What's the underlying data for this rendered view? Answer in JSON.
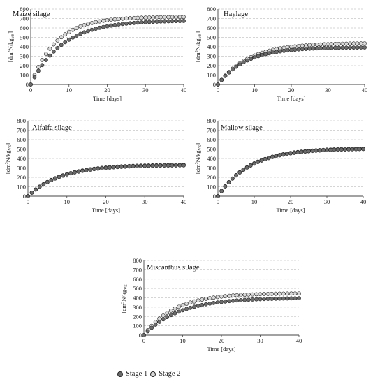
{
  "chart_data": [
    {
      "type": "scatter",
      "title": "Maize silage",
      "xlabel": "Time [days]",
      "ylabel_main": "[dm",
      "ylabel_sup": "3",
      "ylabel_mid": "N/kg",
      "ylabel_sub": "VS",
      "ylabel_end": "]",
      "xlim": [
        0,
        40
      ],
      "ylim": [
        0,
        800
      ],
      "xticks": [
        0,
        10,
        20,
        30,
        40
      ],
      "yticks": [
        0,
        100,
        200,
        300,
        400,
        500,
        600,
        700,
        800
      ],
      "series": [
        {
          "name": "Stage 1",
          "asymptote": 680,
          "k": 0.12
        },
        {
          "name": "Stage 2",
          "asymptote": 718,
          "k": 0.15
        }
      ]
    },
    {
      "type": "scatter",
      "title": "Haylage",
      "xlabel": "Time [days]",
      "ylabel_main": "[dm",
      "ylabel_sup": "3",
      "ylabel_mid": "N/kg",
      "ylabel_sub": "VS",
      "ylabel_end": "]",
      "xlim": [
        0,
        40
      ],
      "ylim": [
        0,
        800
      ],
      "xticks": [
        0,
        10,
        20,
        30,
        40
      ],
      "yticks": [
        0,
        100,
        200,
        300,
        400,
        500,
        600,
        700,
        800
      ],
      "series": [
        {
          "name": "Stage 1",
          "asymptote": 395,
          "k": 0.13
        },
        {
          "name": "Stage 2",
          "asymptote": 440,
          "k": 0.12
        }
      ]
    },
    {
      "type": "scatter",
      "title": "Alfalfa silage",
      "xlabel": "Time [days]",
      "ylabel_main": "[dm",
      "ylabel_sup": "3",
      "ylabel_mid": "N/kg",
      "ylabel_sub": "VS",
      "ylabel_end": "]",
      "xlim": [
        0,
        40
      ],
      "ylim": [
        0,
        800
      ],
      "xticks": [
        0,
        10,
        20,
        30,
        40
      ],
      "yticks": [
        0,
        100,
        200,
        300,
        400,
        500,
        600,
        700,
        800
      ],
      "series": [
        {
          "name": "Stage 1",
          "asymptote": 330,
          "k": 0.12
        },
        {
          "name": "Stage 2",
          "asymptote": 335,
          "k": 0.12
        }
      ]
    },
    {
      "type": "scatter",
      "title": "Mallow silage",
      "xlabel": "Time [days]",
      "ylabel_main": "[dm",
      "ylabel_sup": "3",
      "ylabel_mid": "N/kg",
      "ylabel_sub": "VS",
      "ylabel_end": "]",
      "xlim": [
        0,
        40
      ],
      "ylim": [
        0,
        800
      ],
      "xticks": [
        0,
        10,
        20,
        30,
        40
      ],
      "yticks": [
        0,
        100,
        200,
        300,
        400,
        500,
        600,
        700,
        800
      ],
      "series": [
        {
          "name": "Stage 1",
          "asymptote": 505,
          "k": 0.115
        },
        {
          "name": "Stage 2",
          "asymptote": 510,
          "k": 0.115
        }
      ]
    },
    {
      "type": "scatter",
      "title": "Miscanthus silage",
      "xlabel": "Time [days]",
      "ylabel_main": "[dm",
      "ylabel_sup": "3",
      "ylabel_mid": "N/kg",
      "ylabel_sub": "VS",
      "ylabel_end": "]",
      "xlim": [
        0,
        40
      ],
      "ylim": [
        0,
        800
      ],
      "xticks": [
        0,
        10,
        20,
        30,
        40
      ],
      "yticks": [
        0,
        100,
        200,
        300,
        400,
        500,
        600,
        700,
        800
      ],
      "series": [
        {
          "name": "Stage 1",
          "asymptote": 400,
          "k": 0.11
        },
        {
          "name": "Stage 2",
          "asymptote": 450,
          "k": 0.125
        }
      ]
    }
  ],
  "legend": {
    "items": [
      {
        "label": "Stage 1",
        "fill": "#6b6b6b"
      },
      {
        "label": "Stage 2",
        "fill": "#d9d9d9"
      }
    ]
  },
  "colors": {
    "stage1_fill": "#6b6b6b",
    "stage2_fill": "#d9d9d9",
    "marker_stroke": "#222222",
    "grid": "#c8c8c8",
    "axis": "#444444"
  }
}
